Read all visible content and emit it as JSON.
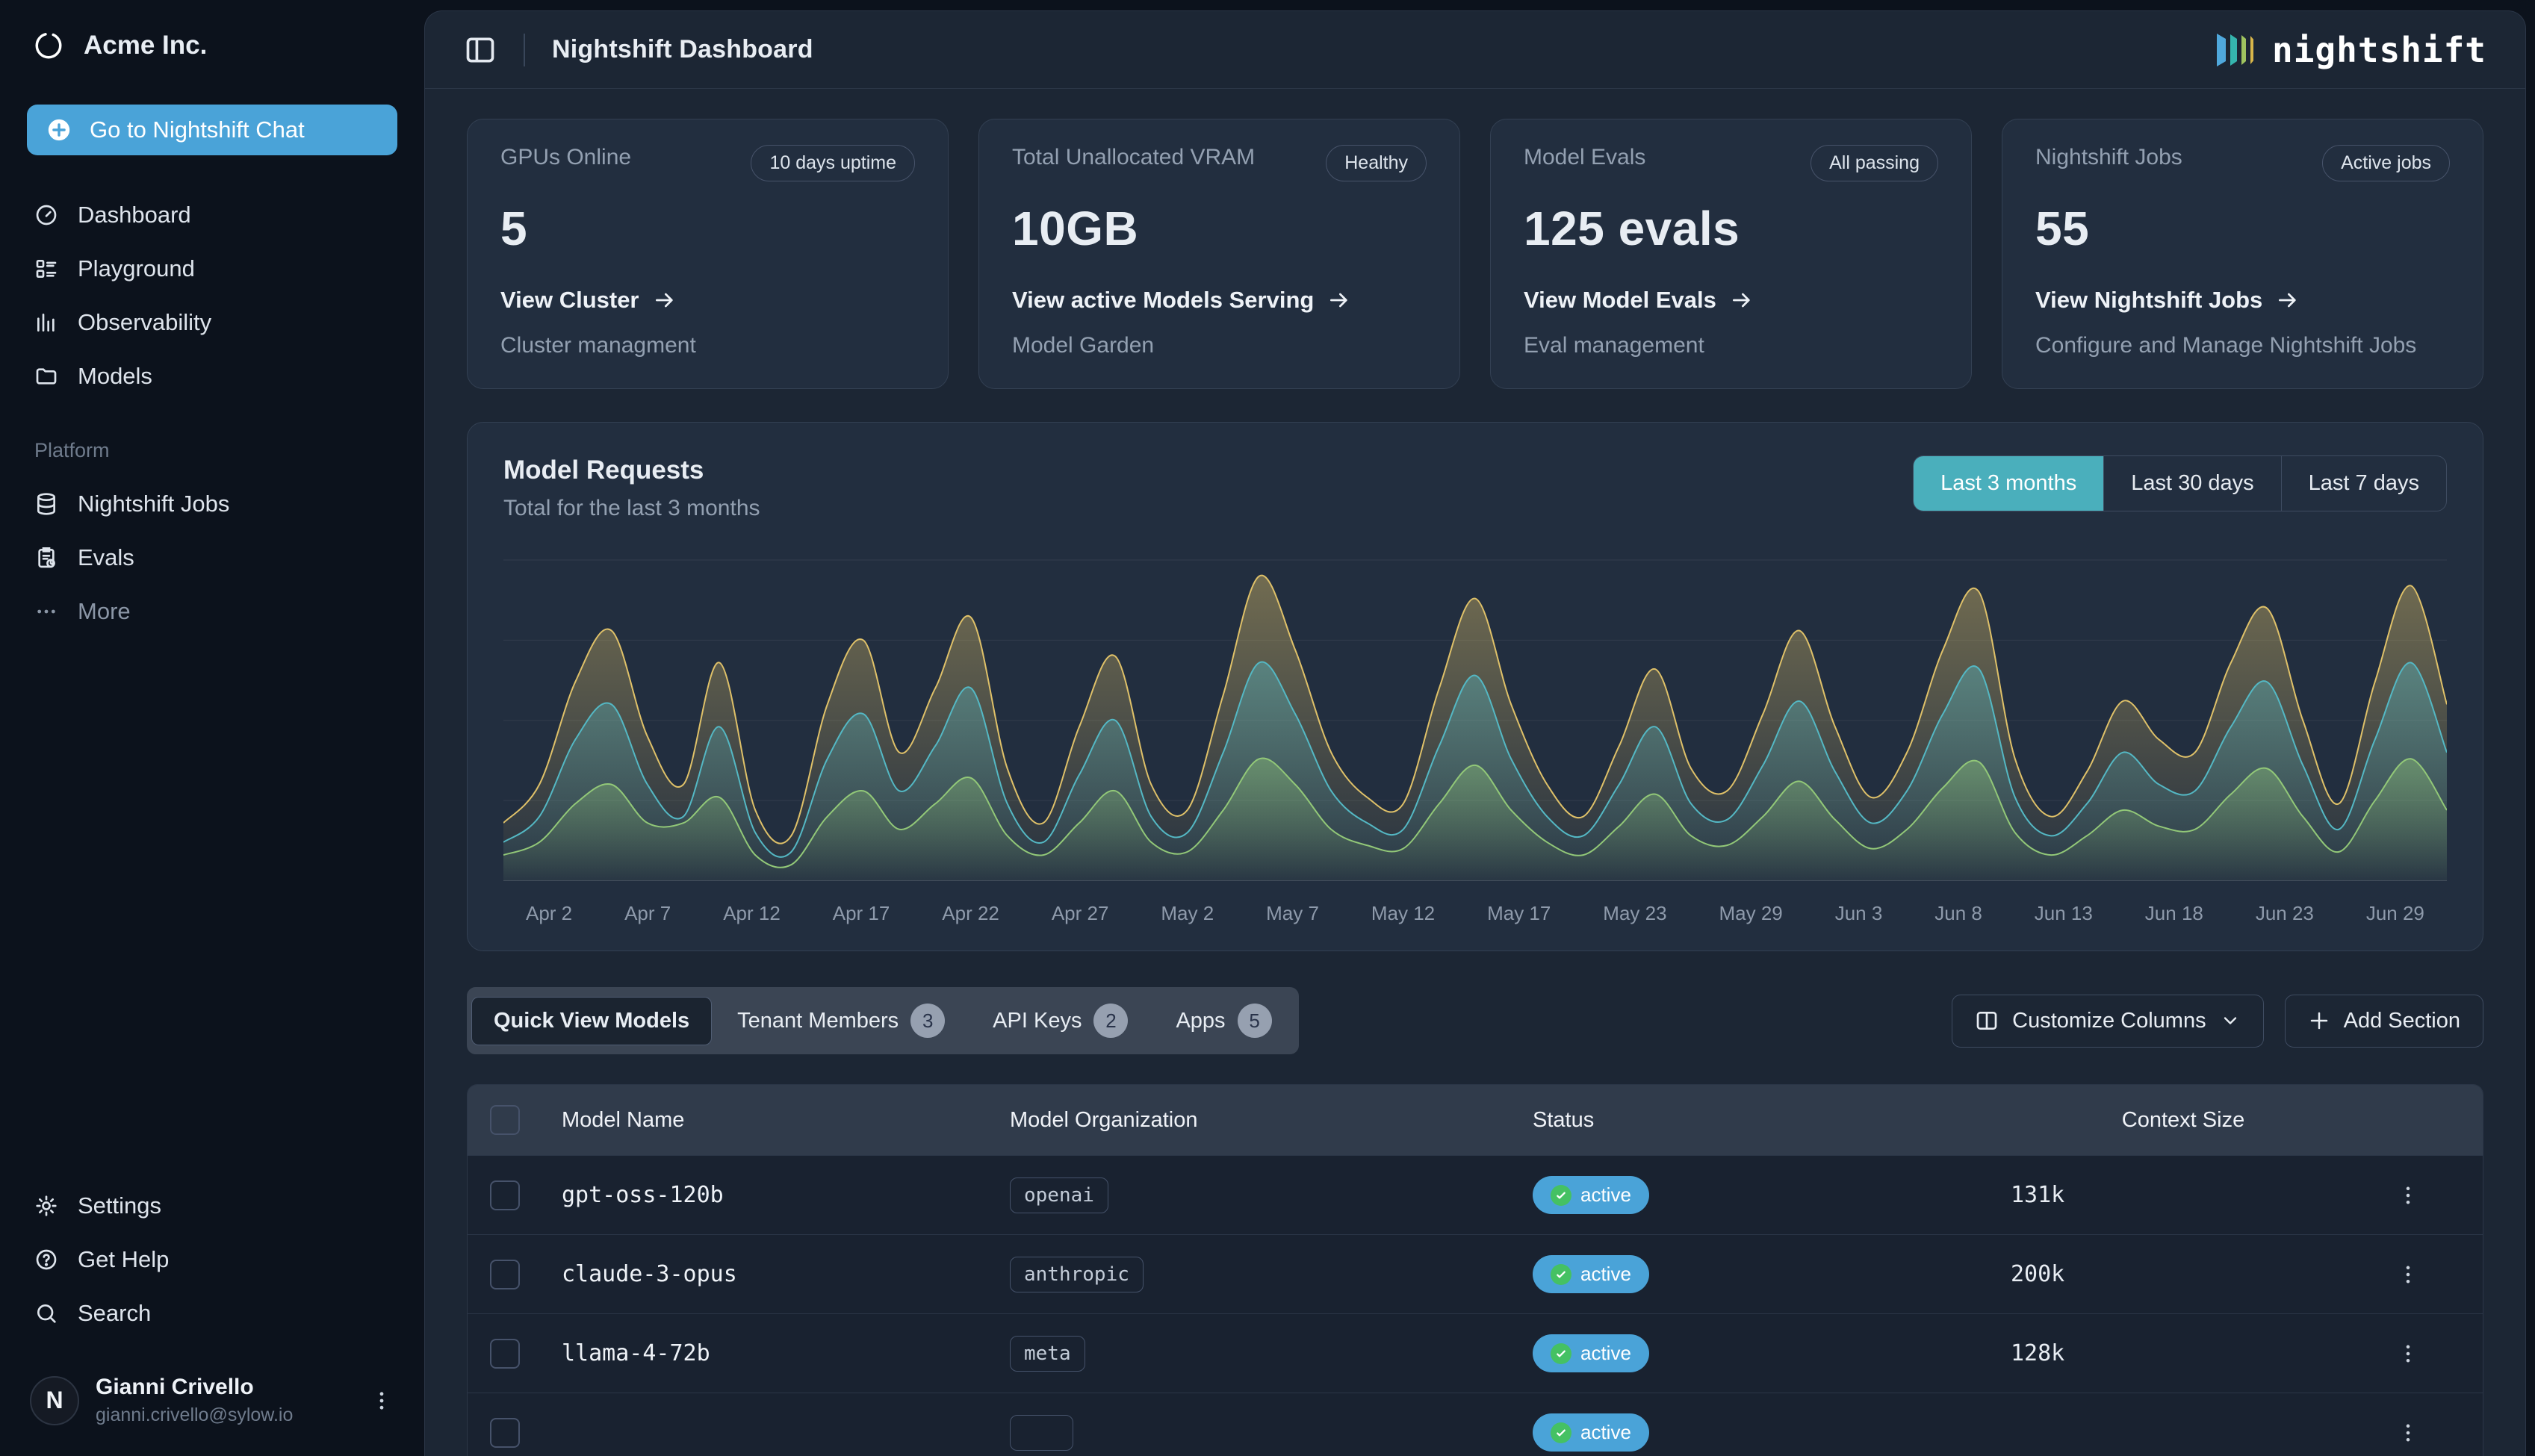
{
  "sidebar": {
    "org_name": "Acme Inc.",
    "chat_button_label": "Go to Nightshift Chat",
    "nav": [
      {
        "label": "Dashboard",
        "icon": "gauge-icon"
      },
      {
        "label": "Playground",
        "icon": "list-icon"
      },
      {
        "label": "Observability",
        "icon": "bar-chart-icon"
      },
      {
        "label": "Models",
        "icon": "folder-icon"
      }
    ],
    "platform_label": "Platform",
    "platform_nav": [
      {
        "label": "Nightshift Jobs",
        "icon": "database-icon"
      },
      {
        "label": "Evals",
        "icon": "clipboard-clock-icon"
      },
      {
        "label": "More",
        "icon": "ellipsis-icon"
      }
    ],
    "footer_nav": [
      {
        "label": "Settings",
        "icon": "gear-icon"
      },
      {
        "label": "Get Help",
        "icon": "help-circle-icon"
      },
      {
        "label": "Search",
        "icon": "search-icon"
      }
    ],
    "user": {
      "name": "Gianni Crivello",
      "email": "gianni.crivello@sylow.io",
      "avatar_initial": "N"
    }
  },
  "header": {
    "title": "Nightshift Dashboard",
    "brand": "nightshift"
  },
  "stat_cards": [
    {
      "label": "GPUs Online",
      "badge": "10 days uptime",
      "value": "5",
      "link": "View Cluster",
      "subtitle": "Cluster managment"
    },
    {
      "label": "Total Unallocated VRAM",
      "badge": "Healthy",
      "value": "10GB",
      "link": "View active Models Serving",
      "subtitle": "Model Garden"
    },
    {
      "label": "Model Evals",
      "badge": "All passing",
      "value": "125 evals",
      "link": "View Model Evals",
      "subtitle": "Eval management"
    },
    {
      "label": "Nightshift Jobs",
      "badge": "Active jobs",
      "value": "55",
      "link": "View Nightshift Jobs",
      "subtitle": "Configure and Manage Nightshift Jobs"
    }
  ],
  "chart_card": {
    "title": "Model Requests",
    "subtitle": "Total for the last 3 months",
    "ranges": [
      "Last 3 months",
      "Last 30 days",
      "Last 7 days"
    ],
    "active_range": "Last 3 months"
  },
  "chart_data": {
    "type": "area",
    "title": "Model Requests",
    "xlabel": "",
    "ylabel": "requests",
    "ylim": [
      0,
      100
    ],
    "grid": "horizontal",
    "legend": "none",
    "x_labels": [
      "Apr 2",
      "Apr 7",
      "Apr 12",
      "Apr 17",
      "Apr 22",
      "Apr 27",
      "May 2",
      "May 7",
      "May 12",
      "May 17",
      "May 23",
      "May 29",
      "Jun 3",
      "Jun 8",
      "Jun 13",
      "Jun 18",
      "Jun 23",
      "Jun 29"
    ],
    "series": [
      {
        "name": "series-yellow",
        "color": "#dfc169",
        "values": [
          18,
          30,
          62,
          78,
          45,
          30,
          68,
          22,
          14,
          55,
          75,
          40,
          60,
          82,
          35,
          18,
          48,
          70,
          30,
          22,
          58,
          95,
          72,
          40,
          26,
          24,
          60,
          88,
          55,
          30,
          20,
          42,
          66,
          35,
          28,
          52,
          78,
          48,
          26,
          40,
          72,
          90,
          38,
          20,
          34,
          56,
          44,
          40,
          68,
          85,
          50,
          24,
          62,
          92,
          55
        ]
      },
      {
        "name": "series-teal",
        "color": "#54b8c4",
        "values": [
          12,
          20,
          44,
          55,
          30,
          20,
          48,
          15,
          9,
          38,
          52,
          28,
          42,
          60,
          24,
          12,
          33,
          50,
          20,
          15,
          40,
          68,
          52,
          28,
          18,
          16,
          42,
          64,
          38,
          20,
          14,
          30,
          48,
          24,
          19,
          36,
          56,
          34,
          18,
          28,
          52,
          66,
          26,
          14,
          24,
          40,
          30,
          28,
          48,
          62,
          36,
          16,
          44,
          68,
          40
        ]
      },
      {
        "name": "series-green",
        "color": "#92c878",
        "values": [
          8,
          12,
          24,
          30,
          18,
          18,
          26,
          8,
          5,
          20,
          28,
          16,
          24,
          32,
          14,
          8,
          18,
          28,
          12,
          9,
          22,
          38,
          30,
          16,
          11,
          10,
          24,
          36,
          22,
          12,
          8,
          17,
          27,
          14,
          11,
          20,
          31,
          19,
          10,
          16,
          29,
          37,
          15,
          8,
          14,
          22,
          17,
          16,
          27,
          35,
          20,
          9,
          25,
          38,
          22
        ]
      }
    ]
  },
  "tabs": [
    {
      "label": "Quick View Models",
      "count": ""
    },
    {
      "label": "Tenant Members",
      "count": "3"
    },
    {
      "label": "API Keys",
      "count": "2"
    },
    {
      "label": "Apps",
      "count": "5"
    }
  ],
  "toolbar": {
    "customize_label": "Customize Columns",
    "add_section_label": "Add Section"
  },
  "table": {
    "columns": [
      "Model Name",
      "Model Organization",
      "Status",
      "Context Size"
    ],
    "rows": [
      {
        "name": "gpt-oss-120b",
        "org": "openai",
        "status": "active",
        "context": "131k"
      },
      {
        "name": "claude-3-opus",
        "org": "anthropic",
        "status": "active",
        "context": "200k"
      },
      {
        "name": "llama-4-72b",
        "org": "meta",
        "status": "active",
        "context": "128k"
      },
      {
        "name": "",
        "org": "",
        "status": "active",
        "context": ""
      }
    ]
  },
  "colors": {
    "accent_blue": "#4aa3d8",
    "active_teal": "#4aafbc",
    "chart_yellow": "#dfc169",
    "chart_teal": "#54b8c4",
    "chart_green": "#92c878",
    "status_dot_green": "#45c163"
  }
}
